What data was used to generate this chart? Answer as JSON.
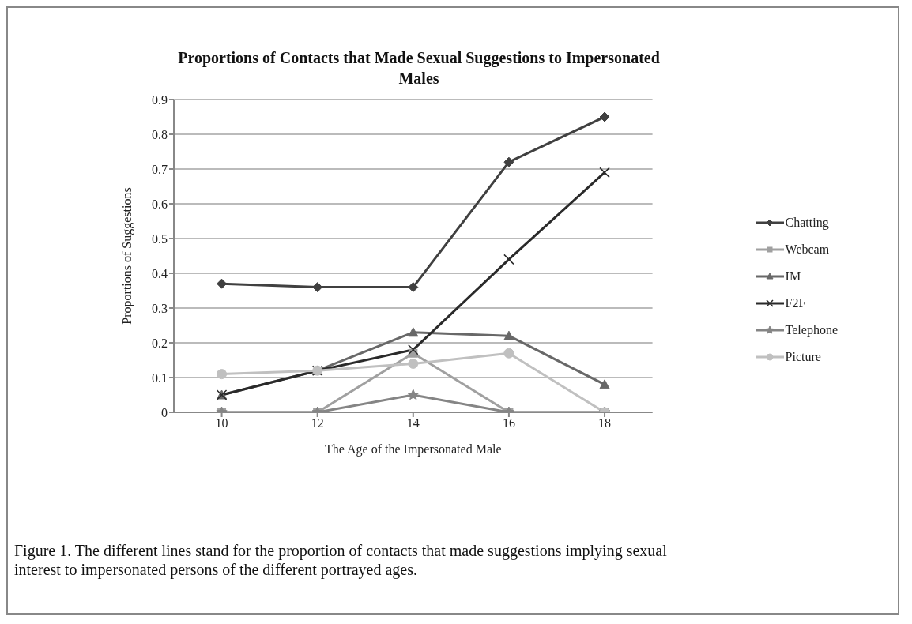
{
  "chart_data": {
    "type": "line",
    "title": "Proportions of Contacts that Made Sexual Suggestions to Impersonated Males",
    "xlabel": "The Age of the Impersonated Male",
    "ylabel": "Proportions of Suggestions",
    "categories": [
      "10",
      "12",
      "14",
      "16",
      "18"
    ],
    "series": [
      {
        "name": "Chatting",
        "color": "#404040",
        "marker": "diamond",
        "values": [
          0.37,
          0.36,
          0.36,
          0.72,
          0.85
        ]
      },
      {
        "name": "Webcam",
        "color": "#a0a0a0",
        "marker": "square",
        "values": [
          0,
          0,
          0.17,
          0,
          0
        ]
      },
      {
        "name": "IM",
        "color": "#686868",
        "marker": "triangle",
        "values": [
          0.05,
          0.12,
          0.23,
          0.22,
          0.08
        ]
      },
      {
        "name": "F2F",
        "color": "#2a2a2a",
        "marker": "cross",
        "values": [
          0.05,
          0.12,
          0.18,
          0.44,
          0.69
        ]
      },
      {
        "name": "Telephone",
        "color": "#858585",
        "marker": "star",
        "values": [
          0,
          0,
          0.05,
          0,
          0
        ]
      },
      {
        "name": "Picture",
        "color": "#c0c0c0",
        "marker": "circle",
        "values": [
          0.11,
          0.12,
          0.14,
          0.17,
          0
        ]
      }
    ],
    "ylim": [
      0,
      0.9
    ],
    "yticks": [
      0,
      0.1,
      0.2,
      0.3,
      0.4,
      0.5,
      0.6,
      0.7,
      0.8,
      0.9
    ],
    "grid": "y",
    "legend": "right",
    "line_style": "solid",
    "annotations": [
      "Figure 1. The different lines stand for the proportion of contacts that made suggestions implying sexual interest to impersonated persons of the different portrayed ages."
    ]
  }
}
